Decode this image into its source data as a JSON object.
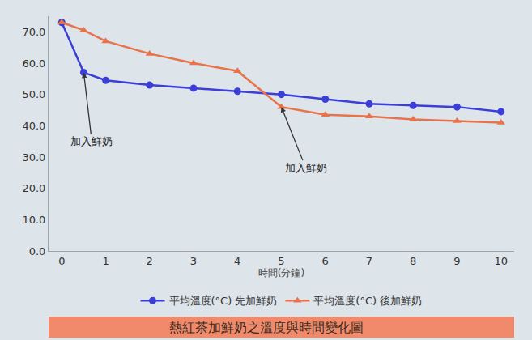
{
  "chart_data": {
    "type": "line",
    "title": "熱紅茶加鮮奶之溫度與時間變化圖",
    "x_label": "時間(分鐘)",
    "series": [
      {
        "name": "平均溫度(°C) 先加鮮奶",
        "color": "#3b3fd8",
        "marker": "circle",
        "x": [
          0,
          0.5,
          1,
          2,
          3,
          4,
          5,
          6,
          7,
          8,
          9,
          10
        ],
        "values": [
          73,
          57,
          54.5,
          53,
          52,
          51,
          50,
          48.5,
          47,
          46.5,
          46,
          44.5
        ]
      },
      {
        "name": "平均溫度(°C) 後加鮮奶",
        "color": "#e8734a",
        "marker": "triangle-up",
        "x": [
          0,
          0.5,
          1,
          2,
          3,
          4,
          5,
          6,
          7,
          8,
          9,
          10
        ],
        "values": [
          73,
          70.5,
          67,
          63,
          60,
          57.5,
          46,
          43.5,
          43,
          42,
          41.5,
          41
        ]
      }
    ],
    "annotations": [
      {
        "text": "加入鮮奶",
        "x": 0.5,
        "y": 57
      },
      {
        "text": "加入鮮奶",
        "x": 5,
        "y": 46
      }
    ],
    "xlim": [
      -0.3,
      10.3
    ],
    "xticks": [
      0,
      1,
      2,
      3,
      4,
      5,
      6,
      7,
      8,
      9,
      10
    ],
    "ylim": [
      0,
      75
    ],
    "yticks": [
      {
        "value": 0,
        "label": "0.0"
      },
      {
        "value": 10,
        "label": "10.0"
      },
      {
        "value": 20,
        "label": "20.0"
      },
      {
        "value": 30,
        "label": "30.0"
      },
      {
        "value": 40,
        "label": "40.0"
      },
      {
        "value": 50,
        "label": "50.0"
      },
      {
        "value": 60,
        "label": "60.0"
      },
      {
        "value": 70,
        "label": "70.0"
      }
    ],
    "grid": false,
    "legend": "bottom"
  }
}
